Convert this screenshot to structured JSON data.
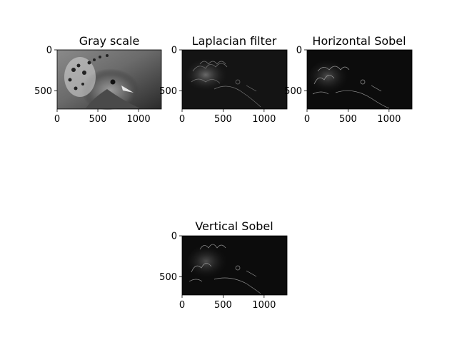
{
  "chart_data": [
    {
      "type": "image",
      "title": "Gray scale",
      "xlim": [
        0,
        1280
      ],
      "ylim": [
        720,
        0
      ],
      "xticks": [
        0,
        500,
        1000
      ],
      "yticks": [
        0,
        500
      ],
      "content": "grayscale photo of a crowned pigeon head",
      "colormap": "gray"
    },
    {
      "type": "image",
      "title": "Laplacian filter",
      "xlim": [
        0,
        1280
      ],
      "ylim": [
        720,
        0
      ],
      "xticks": [
        0,
        500,
        1000
      ],
      "yticks": [
        0,
        500
      ],
      "content": "Laplacian edge response of the pigeon image",
      "colormap": "gray"
    },
    {
      "type": "image",
      "title": "Horizontal Sobel",
      "xlim": [
        0,
        1280
      ],
      "ylim": [
        720,
        0
      ],
      "xticks": [
        0,
        500,
        1000
      ],
      "yticks": [
        0,
        500
      ],
      "content": "horizontal Sobel edge response of the pigeon image",
      "colormap": "gray"
    },
    {
      "type": "image",
      "title": "Vertical Sobel",
      "xlim": [
        0,
        1280
      ],
      "ylim": [
        720,
        0
      ],
      "xticks": [
        0,
        500,
        1000
      ],
      "yticks": [
        0,
        500
      ],
      "content": "vertical Sobel edge response of the pigeon image",
      "colormap": "gray"
    }
  ],
  "colors": {
    "background": "#ffffff",
    "axis": "#000000"
  }
}
